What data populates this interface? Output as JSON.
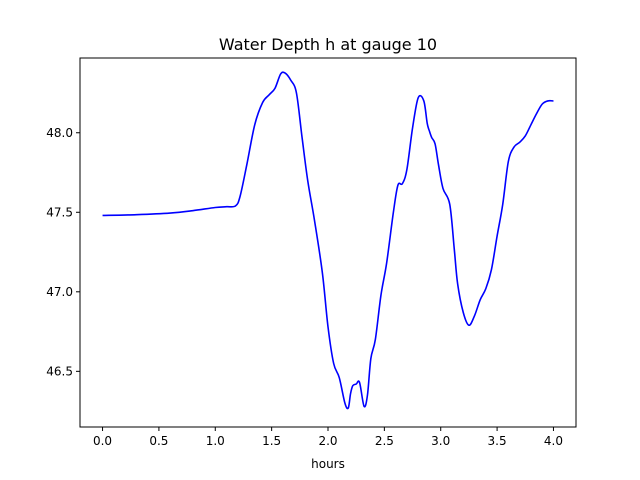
{
  "chart_data": {
    "type": "line",
    "title": "Water Depth h at gauge 10",
    "xlabel": "hours",
    "ylabel": "",
    "xlim": [
      -0.2,
      4.2
    ],
    "ylim": [
      46.15,
      48.47
    ],
    "xticks": [
      0.0,
      0.5,
      1.0,
      1.5,
      2.0,
      2.5,
      3.0,
      3.5,
      4.0
    ],
    "xtick_labels": [
      "0.0",
      "0.5",
      "1.0",
      "1.5",
      "2.0",
      "2.5",
      "3.0",
      "3.5",
      "4.0"
    ],
    "yticks": [
      46.5,
      47.0,
      47.5,
      48.0
    ],
    "ytick_labels": [
      "46.5",
      "47.0",
      "47.5",
      "48.0"
    ],
    "grid": false,
    "series": [
      {
        "color": "#0000ff",
        "x": [
          0.0,
          0.3,
          0.6,
          0.8,
          1.0,
          1.1,
          1.18,
          1.22,
          1.28,
          1.35,
          1.42,
          1.48,
          1.53,
          1.58,
          1.62,
          1.67,
          1.72,
          1.77,
          1.82,
          1.88,
          1.95,
          2.0,
          2.05,
          2.1,
          2.15,
          2.18,
          2.2,
          2.22,
          2.25,
          2.28,
          2.32,
          2.35,
          2.38,
          2.42,
          2.47,
          2.52,
          2.58,
          2.62,
          2.66,
          2.7,
          2.75,
          2.8,
          2.85,
          2.88,
          2.9,
          2.92,
          2.95,
          2.98,
          3.02,
          3.08,
          3.12,
          3.15,
          3.2,
          3.25,
          3.3,
          3.35,
          3.4,
          3.45,
          3.5,
          3.55,
          3.6,
          3.65,
          3.7,
          3.75,
          3.8,
          3.85,
          3.9,
          3.95,
          4.0
        ],
        "y": [
          47.48,
          47.485,
          47.495,
          47.51,
          47.53,
          47.535,
          47.54,
          47.6,
          47.8,
          48.05,
          48.19,
          48.24,
          48.28,
          48.37,
          48.375,
          48.33,
          48.25,
          47.97,
          47.7,
          47.45,
          47.12,
          46.78,
          46.55,
          46.46,
          46.3,
          46.27,
          46.36,
          46.41,
          46.42,
          46.43,
          46.28,
          46.35,
          46.58,
          46.7,
          46.98,
          47.18,
          47.5,
          47.67,
          47.68,
          47.77,
          48.03,
          48.22,
          48.2,
          48.06,
          48.01,
          47.97,
          47.93,
          47.8,
          47.65,
          47.55,
          47.27,
          47.05,
          46.87,
          46.79,
          46.85,
          46.95,
          47.02,
          47.14,
          47.35,
          47.55,
          47.82,
          47.91,
          47.94,
          47.98,
          48.05,
          48.12,
          48.18,
          48.2,
          48.2
        ]
      }
    ]
  }
}
